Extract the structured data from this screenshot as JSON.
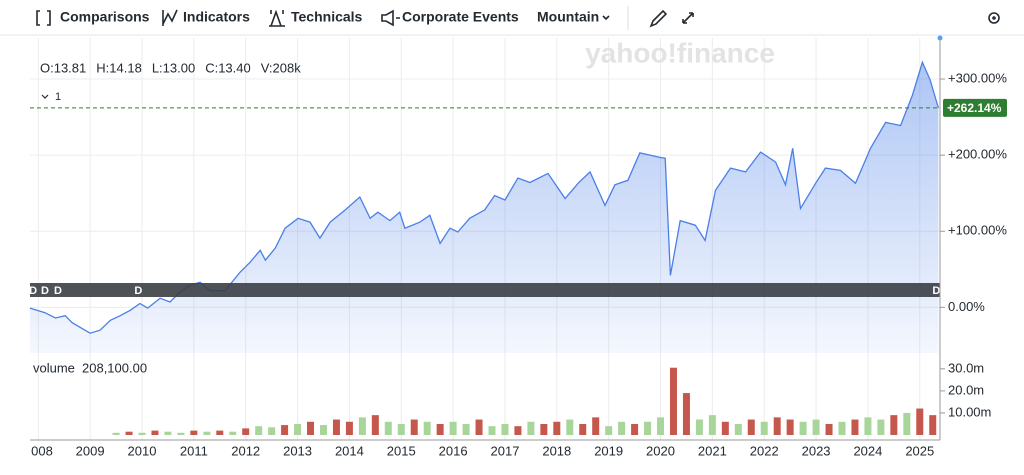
{
  "toolbar": {
    "items": [
      "Comparisons",
      "Indicators",
      "Technicals",
      "Corporate Events",
      "Mountain"
    ]
  },
  "chart_data": {
    "type": "area",
    "watermark": "yahoo!finance",
    "ohlc": [
      "O:13.81",
      "H:14.18",
      "L:13.00",
      "C:13.40",
      "V:208k"
    ],
    "indicator_count": 1,
    "color": "#4a7fe8",
    "x": [
      2007.84,
      2008.13,
      2008.33,
      2008.52,
      2008.65,
      2008.9,
      2009.0,
      2009.19,
      2009.39,
      2009.58,
      2009.77,
      2009.96,
      2010.11,
      2010.35,
      2010.54,
      2010.73,
      2010.92,
      2011.12,
      2011.31,
      2011.6,
      2011.89,
      2012.08,
      2012.28,
      2012.38,
      2012.57,
      2012.76,
      2013.01,
      2013.24,
      2013.43,
      2013.63,
      2013.92,
      2014.2,
      2014.4,
      2014.55,
      2014.78,
      2014.97,
      2015.07,
      2015.36,
      2015.55,
      2015.75,
      2015.94,
      2016.09,
      2016.32,
      2016.61,
      2016.8,
      2017.0,
      2017.25,
      2017.48,
      2017.83,
      2018.16,
      2018.41,
      2018.64,
      2018.93,
      2019.12,
      2019.37,
      2019.6,
      2019.99,
      2020.09,
      2020.19,
      2020.38,
      2020.67,
      2020.86,
      2021.06,
      2021.35,
      2021.64,
      2021.93,
      2022.22,
      2022.41,
      2022.55,
      2022.7,
      2022.99,
      2023.18,
      2023.47,
      2023.76,
      2024.05,
      2024.34,
      2024.63,
      2024.86,
      2025.05,
      2025.2,
      2025.36
    ],
    "values": [
      -1,
      -7,
      -14,
      -11,
      -20,
      -30,
      -34,
      -30,
      -17,
      -11,
      -4,
      5,
      -1,
      12,
      7,
      20,
      29,
      33,
      22,
      22,
      46,
      59,
      75,
      62,
      78,
      104,
      117,
      112,
      91,
      112,
      128,
      145,
      117,
      125,
      114,
      125,
      104,
      112,
      121,
      84,
      104,
      99,
      117,
      128,
      147,
      141,
      170,
      164,
      176,
      143,
      163,
      178,
      134,
      161,
      167,
      203,
      197,
      196,
      42,
      114,
      108,
      88,
      154,
      183,
      178,
      204,
      191,
      161,
      209,
      130,
      163,
      183,
      180,
      163,
      209,
      243,
      239,
      279,
      322,
      299,
      262
    ],
    "xlim": [
      2007.84,
      2025.39
    ],
    "xticks": [
      {
        "value": 2008,
        "label": "008"
      },
      2009,
      2010,
      2011,
      2012,
      2013,
      2014,
      2015,
      2016,
      2017,
      2018,
      2019,
      2020,
      2021,
      2022,
      2023,
      2024,
      2025
    ],
    "ylim": [
      -60,
      350
    ],
    "yticks": [
      {
        "value": 0,
        "label": "0.00%"
      },
      {
        "value": 100,
        "label": "+100.00%"
      },
      {
        "value": 200,
        "label": "+200.00%"
      },
      {
        "value": 300,
        "label": "+300.00%"
      }
    ],
    "grid": true,
    "last_value": 262.14,
    "last_value_label": "+262.14%",
    "last_value_color": "#2e7d32",
    "events": [
      {
        "x": 2007.9,
        "label": "D"
      },
      {
        "x": 2008.13,
        "label": "D"
      },
      {
        "x": 2008.38,
        "label": "D"
      },
      {
        "x": 2009.93,
        "label": "D"
      },
      {
        "x": 2025.32,
        "label": "D"
      }
    ],
    "volume": {
      "label": "volume",
      "current": "208,100.00",
      "x": [
        2009.5,
        2009.75,
        2010,
        2010.25,
        2010.5,
        2010.75,
        2011,
        2011.25,
        2011.5,
        2011.75,
        2012,
        2012.25,
        2012.5,
        2012.75,
        2013,
        2013.25,
        2013.5,
        2013.75,
        2014,
        2014.25,
        2014.5,
        2014.75,
        2015,
        2015.25,
        2015.5,
        2015.75,
        2016,
        2016.25,
        2016.5,
        2016.75,
        2017,
        2017.25,
        2017.5,
        2017.75,
        2018,
        2018.25,
        2018.5,
        2018.75,
        2019,
        2019.25,
        2019.5,
        2019.75,
        2020,
        2020.25,
        2020.5,
        2020.75,
        2021,
        2021.25,
        2021.5,
        2021.75,
        2022,
        2022.25,
        2022.5,
        2022.75,
        2023,
        2023.25,
        2023.5,
        2023.75,
        2024,
        2024.25,
        2024.5,
        2024.75,
        2025,
        2025.25
      ],
      "values": [
        1000000,
        1500000,
        1000000,
        2000000,
        1500000,
        1000000,
        2000000,
        1500000,
        2000000,
        1500000,
        3000000,
        4000000,
        3500000,
        4500000,
        5000000,
        6000000,
        4500000,
        7000000,
        6000000,
        8000000,
        9000000,
        6000000,
        5000000,
        7000000,
        6000000,
        5000000,
        6000000,
        5000000,
        7000000,
        4000000,
        5000000,
        4000000,
        6000000,
        5000000,
        6000000,
        7000000,
        5000000,
        8000000,
        4000000,
        6000000,
        5000000,
        6000000,
        8000000,
        30500000,
        19000000,
        7000000,
        9000000,
        6000000,
        5000000,
        7000000,
        6000000,
        8000000,
        7000000,
        6000000,
        7000000,
        5000000,
        6000000,
        7000000,
        8000000,
        7000000,
        9000000,
        10000000,
        12000000,
        9000000
      ],
      "colors": [
        "#a8d69a",
        "#c5574c",
        "#a8d69a",
        "#c5574c",
        "#a8d69a",
        "#a8d69a",
        "#c5574c",
        "#a8d69a",
        "#c5574c",
        "#a8d69a",
        "#c5574c",
        "#a8d69a",
        "#a8d69a",
        "#c5574c",
        "#a8d69a",
        "#c5574c",
        "#a8d69a",
        "#c5574c",
        "#c5574c",
        "#a8d69a",
        "#c5574c",
        "#a8d69a",
        "#a8d69a",
        "#c5574c",
        "#a8d69a",
        "#c5574c",
        "#a8d69a",
        "#a8d69a",
        "#c5574c",
        "#a8d69a",
        "#a8d69a",
        "#c5574c",
        "#a8d69a",
        "#c5574c",
        "#c5574c",
        "#a8d69a",
        "#c5574c",
        "#c5574c",
        "#a8d69a",
        "#a8d69a",
        "#c5574c",
        "#a8d69a",
        "#a8d69a",
        "#c5574c",
        "#c5574c",
        "#a8d69a",
        "#a8d69a",
        "#c5574c",
        "#a8d69a",
        "#c5574c",
        "#a8d69a",
        "#c5574c",
        "#c5574c",
        "#a8d69a",
        "#a8d69a",
        "#c5574c",
        "#a8d69a",
        "#c5574c",
        "#a8d69a",
        "#a8d69a",
        "#c5574c",
        "#a8d69a",
        "#c5574c",
        "#c5574c"
      ],
      "ylim": [
        0,
        34000000
      ],
      "yticks": [
        {
          "value": 10000000,
          "label": "10.00m"
        },
        {
          "value": 20000000,
          "label": "20.0m"
        },
        {
          "value": 30000000,
          "label": "30.0m"
        }
      ]
    }
  }
}
